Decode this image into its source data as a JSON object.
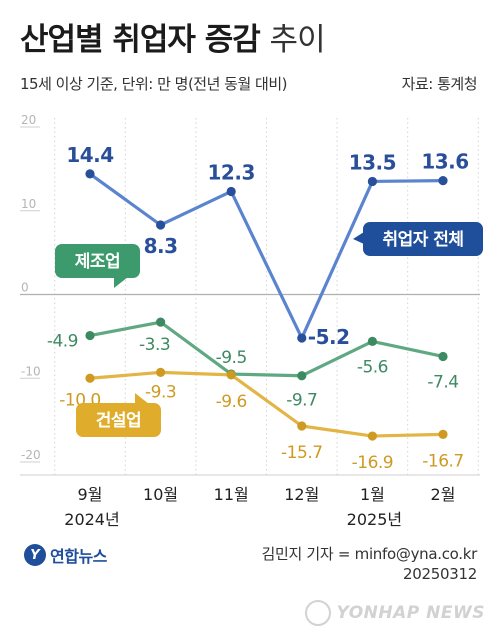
{
  "header": {
    "title_bold": "산업별 취업자 증감",
    "title_light": "추이",
    "subtitle": "15세 이상 기준, 단위: 만 명(전년 동월 대비)",
    "source": "자료: 통계청"
  },
  "chart_data": {
    "type": "line",
    "categories": [
      "9월",
      "10월",
      "11월",
      "12월",
      "1월",
      "2월"
    ],
    "year_labels": [
      {
        "text": "2024년",
        "category": "9월"
      },
      {
        "text": "2025년",
        "category": "1월"
      }
    ],
    "y_ticks": [
      20,
      10,
      0,
      -10,
      -20
    ],
    "y_tick_labels": [
      "20",
      "10",
      "0",
      "-10",
      "-20"
    ],
    "ylim": [
      -20,
      20
    ],
    "grid": "vertical dotted",
    "series": [
      {
        "name": "취업자 전체",
        "color": "#5b84cf",
        "label_color": "#2a4f9a",
        "label_bg": "#1f4e9a",
        "values": [
          14.4,
          8.3,
          12.3,
          -5.2,
          13.5,
          13.6
        ],
        "value_labels": [
          "14.4",
          "8.3",
          "12.3",
          "-5.2",
          "13.5",
          "13.6"
        ]
      },
      {
        "name": "제조업",
        "color": "#5fa882",
        "label_color": "#3d8a62",
        "label_bg": "#3d9a6c",
        "values": [
          -4.9,
          -3.3,
          -9.5,
          -9.7,
          -5.6,
          -7.4
        ],
        "value_labels": [
          "-4.9",
          "-3.3",
          "-9.5",
          "-9.7",
          "-5.6",
          "-7.4"
        ]
      },
      {
        "name": "건설업",
        "color": "#e3b546",
        "label_color": "#cf9a22",
        "label_bg": "#e0ac2c",
        "values": [
          -10.0,
          -9.3,
          -9.6,
          -15.7,
          -16.9,
          -16.7
        ],
        "value_labels": [
          "-10.0",
          "-9.3",
          "-9.6",
          "-15.7",
          "-16.9",
          "-16.7"
        ]
      }
    ]
  },
  "footer": {
    "logo_mark": "Y",
    "logo_text": "연합뉴스",
    "credit_line1": "김민지 기자 = minfo@yna.co.kr",
    "credit_line2": "20250312",
    "watermark": "YONHAP NEWS"
  }
}
